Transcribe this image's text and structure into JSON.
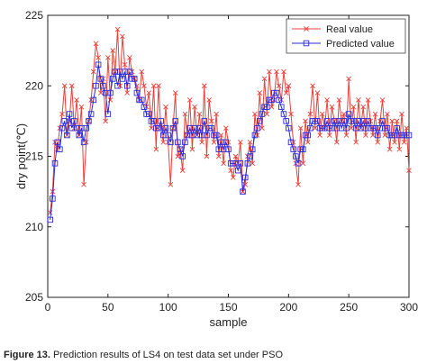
{
  "caption": {
    "label": "Figure 13.",
    "text": "Prediction results of LS4 on test data set under PSO"
  },
  "chart_data": {
    "type": "line",
    "title": "",
    "xlabel": "sample",
    "ylabel": "dry point(℃)",
    "xlim": [
      0,
      300
    ],
    "ylim": [
      205,
      225
    ],
    "xticks": [
      0,
      50,
      100,
      150,
      200,
      250,
      300
    ],
    "yticks": [
      205,
      210,
      215,
      220,
      225
    ],
    "xtick_labels": [
      "0",
      "50",
      "100",
      "150",
      "200",
      "250",
      "300"
    ],
    "ytick_labels": [
      "205",
      "210",
      "215",
      "220",
      "225"
    ],
    "grid": false,
    "legend_position": "top-right",
    "series": [
      {
        "name": "Real value",
        "color": "#e8413a",
        "marker": "x-marker",
        "x": [
          2,
          4,
          6,
          8,
          10,
          12,
          14,
          16,
          18,
          20,
          22,
          24,
          26,
          28,
          30,
          32,
          34,
          36,
          38,
          40,
          42,
          44,
          46,
          48,
          50,
          52,
          54,
          56,
          58,
          60,
          62,
          64,
          66,
          68,
          70,
          72,
          74,
          76,
          78,
          80,
          82,
          84,
          86,
          88,
          90,
          92,
          94,
          96,
          98,
          100,
          102,
          104,
          106,
          108,
          110,
          112,
          114,
          116,
          118,
          120,
          122,
          124,
          126,
          128,
          130,
          132,
          134,
          136,
          138,
          140,
          142,
          144,
          146,
          148,
          150,
          152,
          154,
          156,
          158,
          160,
          162,
          164,
          166,
          168,
          170,
          172,
          174,
          176,
          178,
          180,
          182,
          184,
          186,
          188,
          190,
          192,
          194,
          196,
          198,
          200,
          202,
          204,
          206,
          208,
          210,
          212,
          214,
          216,
          218,
          220,
          222,
          224,
          226,
          228,
          230,
          232,
          234,
          236,
          238,
          240,
          242,
          244,
          246,
          248,
          250,
          252,
          254,
          256,
          258,
          260,
          262,
          264,
          266,
          268,
          270,
          272,
          274,
          276,
          278,
          280,
          282,
          284,
          286,
          288,
          290,
          292,
          294,
          296,
          298,
          300
        ],
        "values": [
          211.0,
          212.5,
          216.0,
          215.5,
          217.0,
          218.0,
          220.0,
          216.5,
          217.5,
          220.0,
          217.0,
          219.0,
          216.5,
          218.5,
          213.0,
          216.0,
          217.5,
          219.0,
          221.0,
          223.0,
          222.0,
          219.5,
          220.5,
          217.5,
          222.0,
          219.0,
          222.5,
          221.0,
          224.0,
          220.0,
          223.5,
          221.5,
          219.5,
          222.0,
          221.0,
          220.5,
          220.0,
          219.0,
          221.0,
          220.0,
          218.5,
          219.5,
          217.0,
          220.0,
          215.5,
          220.0,
          217.0,
          216.0,
          218.5,
          216.0,
          213.0,
          217.0,
          219.5,
          215.0,
          215.5,
          214.0,
          218.0,
          216.5,
          219.0,
          215.5,
          218.5,
          216.5,
          218.0,
          216.0,
          220.0,
          215.0,
          219.0,
          217.5,
          216.0,
          218.0,
          215.0,
          216.5,
          214.5,
          217.0,
          216.0,
          214.0,
          213.5,
          215.0,
          214.5,
          216.0,
          212.5,
          213.0,
          215.0,
          216.0,
          214.5,
          218.0,
          216.5,
          219.5,
          217.0,
          220.5,
          218.0,
          221.0,
          218.5,
          219.0,
          221.0,
          220.0,
          219.0,
          221.0,
          219.5,
          220.0,
          218.0,
          216.0,
          214.5,
          213.0,
          217.0,
          214.5,
          217.5,
          216.0,
          218.0,
          220.0,
          217.0,
          219.5,
          216.5,
          218.0,
          217.0,
          219.0,
          216.5,
          218.5,
          217.5,
          216.0,
          219.0,
          217.5,
          218.0,
          216.5,
          220.5,
          217.0,
          218.5,
          216.0,
          219.0,
          217.0,
          218.5,
          216.5,
          219.0,
          217.5,
          216.5,
          218.0,
          216.0,
          217.5,
          219.0,
          216.5,
          218.0,
          215.5,
          217.5,
          216.0,
          217.5,
          215.5,
          218.0,
          216.0,
          217.0,
          214.0
        ]
      },
      {
        "name": "Predicted value",
        "color": "#2b2bd9",
        "marker": "square-marker",
        "x": [
          2,
          4,
          6,
          8,
          10,
          12,
          14,
          16,
          18,
          20,
          22,
          24,
          26,
          28,
          30,
          32,
          34,
          36,
          38,
          40,
          42,
          44,
          46,
          48,
          50,
          52,
          54,
          56,
          58,
          60,
          62,
          64,
          66,
          68,
          70,
          72,
          74,
          76,
          78,
          80,
          82,
          84,
          86,
          88,
          90,
          92,
          94,
          96,
          98,
          100,
          102,
          104,
          106,
          108,
          110,
          112,
          114,
          116,
          118,
          120,
          122,
          124,
          126,
          128,
          130,
          132,
          134,
          136,
          138,
          140,
          142,
          144,
          146,
          148,
          150,
          152,
          154,
          156,
          158,
          160,
          162,
          164,
          166,
          168,
          170,
          172,
          174,
          176,
          178,
          180,
          182,
          184,
          186,
          188,
          190,
          192,
          194,
          196,
          198,
          200,
          202,
          204,
          206,
          208,
          210,
          212,
          214,
          216,
          218,
          220,
          222,
          224,
          226,
          228,
          230,
          232,
          234,
          236,
          238,
          240,
          242,
          244,
          246,
          248,
          250,
          252,
          254,
          256,
          258,
          260,
          262,
          264,
          266,
          268,
          270,
          272,
          274,
          276,
          278,
          280,
          282,
          284,
          286,
          288,
          290,
          292,
          294,
          296,
          298,
          300
        ],
        "values": [
          210.5,
          212.0,
          214.5,
          216.0,
          215.5,
          217.0,
          217.5,
          216.5,
          218.0,
          217.0,
          217.5,
          217.0,
          216.5,
          217.0,
          216.0,
          217.0,
          217.5,
          218.0,
          219.0,
          220.0,
          221.5,
          220.5,
          220.0,
          219.5,
          218.0,
          219.5,
          220.5,
          221.0,
          220.0,
          221.0,
          220.5,
          221.0,
          220.0,
          221.0,
          220.5,
          220.5,
          219.5,
          219.0,
          219.0,
          218.5,
          218.0,
          218.0,
          217.5,
          217.5,
          217.0,
          217.0,
          217.5,
          216.5,
          217.0,
          216.5,
          216.0,
          217.0,
          217.5,
          216.0,
          215.5,
          215.0,
          216.0,
          216.5,
          217.0,
          216.5,
          217.0,
          216.5,
          217.0,
          216.5,
          217.5,
          216.5,
          217.0,
          217.0,
          216.5,
          216.5,
          215.5,
          216.0,
          215.5,
          216.0,
          215.5,
          214.5,
          214.5,
          214.5,
          214.0,
          214.5,
          212.5,
          213.5,
          214.5,
          215.0,
          215.5,
          216.5,
          217.0,
          217.5,
          218.0,
          218.5,
          218.5,
          219.0,
          219.0,
          219.5,
          219.5,
          219.0,
          218.5,
          218.0,
          217.5,
          217.0,
          216.0,
          215.5,
          215.0,
          214.5,
          215.5,
          215.5,
          216.5,
          216.5,
          217.0,
          217.5,
          217.5,
          217.5,
          217.0,
          217.0,
          217.0,
          217.5,
          217.0,
          217.0,
          217.5,
          217.0,
          217.5,
          217.0,
          217.5,
          217.0,
          218.0,
          217.5,
          217.5,
          217.0,
          217.5,
          217.0,
          217.5,
          217.0,
          217.5,
          217.0,
          217.0,
          217.0,
          216.5,
          217.0,
          217.5,
          217.0,
          217.0,
          216.5,
          216.5,
          216.5,
          217.0,
          216.5,
          216.5,
          216.5,
          216.5,
          216.5
        ]
      }
    ]
  }
}
